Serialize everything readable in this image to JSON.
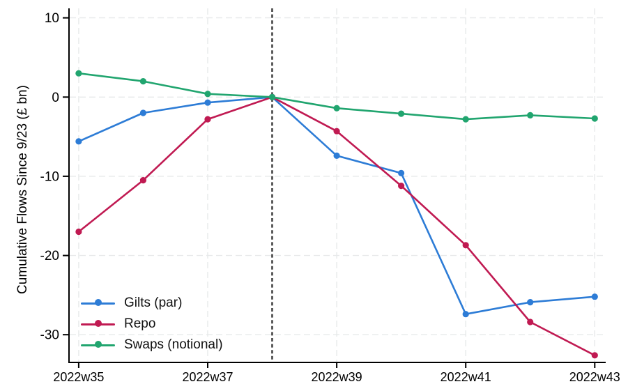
{
  "chart_data": {
    "type": "line",
    "title": "",
    "xlabel": "",
    "ylabel": "Cumulative Flows Since 9/23 (£ bn)",
    "grid": true,
    "legend_position": "bottom-left-inside",
    "categories": [
      "2022w35",
      "2022w36",
      "2022w37",
      "2022w38",
      "2022w39",
      "2022w40",
      "2022w41",
      "2022w42",
      "2022w43"
    ],
    "weeks": [
      35,
      36,
      37,
      38,
      39,
      40,
      41,
      42,
      43
    ],
    "x_tick_weeks": [
      35,
      37,
      39,
      41,
      43
    ],
    "x_tick_labels": [
      "2022w35",
      "2022w37",
      "2022w39",
      "2022w41",
      "2022w43"
    ],
    "y_ticks": [
      10,
      0,
      -10,
      -20,
      -30
    ],
    "ylim": [
      11.2,
      -33.5
    ],
    "xlim": [
      34.85,
      43.17
    ],
    "vline_week": 38,
    "vline_color": "#525252",
    "series": [
      {
        "id": "gilts-par",
        "name": "Gilts (par)",
        "color": "#2d7cd6",
        "values": [
          -5.6,
          -2.0,
          -0.7,
          0,
          -7.4,
          -9.6,
          -27.4,
          -25.9,
          -25.2
        ]
      },
      {
        "id": "repo",
        "name": "Repo",
        "color": "#c01a52",
        "values": [
          -17.0,
          -10.5,
          -2.8,
          0,
          -4.3,
          -11.2,
          -18.7,
          -28.4,
          -32.6
        ]
      },
      {
        "id": "swaps-notional",
        "name": "Swaps (notional)",
        "color": "#21a56f",
        "values": [
          3.0,
          2.0,
          0.4,
          0,
          -1.4,
          -2.1,
          -2.8,
          -2.3,
          -2.7
        ]
      }
    ]
  }
}
